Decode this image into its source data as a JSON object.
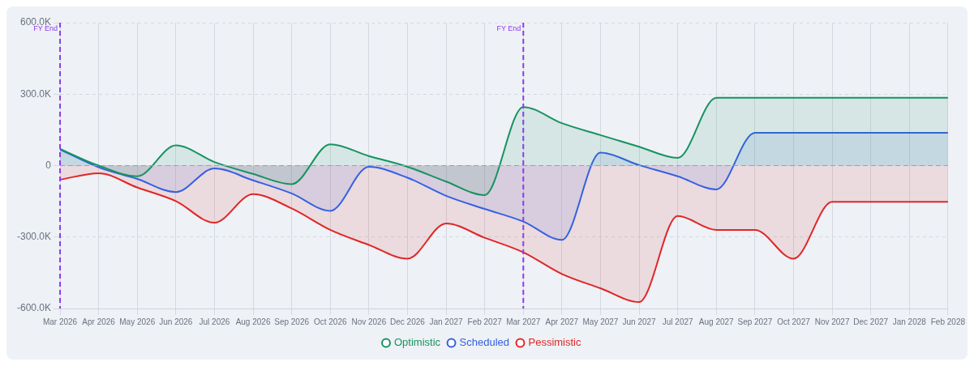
{
  "chart_data": {
    "type": "area",
    "categories": [
      "Mar 2026",
      "Apr 2026",
      "May 2026",
      "Jun 2026",
      "Jul 2026",
      "Aug 2026",
      "Sep 2026",
      "Oct 2026",
      "Nov 2026",
      "Dec 2026",
      "Jan 2027",
      "Feb 2027",
      "Mar 2027",
      "Apr 2027",
      "May 2027",
      "Jun 2027",
      "Jul 2027",
      "Aug 2027",
      "Sep 2027",
      "Oct 2027",
      "Nov 2027",
      "Dec 2027",
      "Jan 2028",
      "Feb 2028"
    ],
    "series": [
      {
        "name": "Optimistic",
        "color": "#17935f",
        "values": [
          70000,
          0,
          -45000,
          85000,
          15000,
          -35000,
          -78000,
          89000,
          40000,
          -5000,
          -67000,
          -124000,
          246000,
          178000,
          128000,
          79000,
          32000,
          285000,
          285000,
          285000,
          285000,
          285000,
          285000,
          285000
        ]
      },
      {
        "name": "Scheduled",
        "color": "#3461e0",
        "values": [
          68000,
          -7000,
          -56000,
          -111000,
          -12000,
          -62000,
          -117000,
          -190000,
          -5000,
          -51000,
          -127000,
          -182000,
          -235000,
          -312000,
          54000,
          2000,
          -45000,
          -100000,
          138000,
          138000,
          138000,
          138000,
          138000,
          138000
        ]
      },
      {
        "name": "Pessimistic",
        "color": "#df2626",
        "values": [
          -59000,
          -32000,
          -92000,
          -149000,
          -240000,
          -120000,
          -180000,
          -270000,
          -333000,
          -391000,
          -243000,
          -303000,
          -364000,
          -455000,
          -515000,
          -573000,
          -212000,
          -270000,
          -270000,
          -391000,
          -152000,
          -152000,
          -152000,
          -152000
        ]
      }
    ],
    "ylim": [
      -600000,
      600000
    ],
    "yticks": [
      {
        "value": -600000,
        "label": "-600.0K"
      },
      {
        "value": -300000,
        "label": "-300.0K"
      },
      0,
      {
        "value": 300000,
        "label": "300.0K"
      },
      {
        "value": 600000,
        "label": "600.0K"
      }
    ],
    "ref_lines": [
      {
        "axis": "x",
        "value": "Mar 2026",
        "label": "FY End",
        "color": "#8b3cf0",
        "line_style": "dashed"
      },
      {
        "axis": "x",
        "value": "Mar 2027",
        "label": "FY End",
        "color": "#8b3cf0",
        "line_style": "dashed"
      },
      {
        "axis": "y",
        "value": 0,
        "color": "#9aa0ab",
        "line_style": "dashed"
      }
    ],
    "grid": true,
    "legend": "bottom",
    "marker": "none",
    "line_style": "solid"
  }
}
